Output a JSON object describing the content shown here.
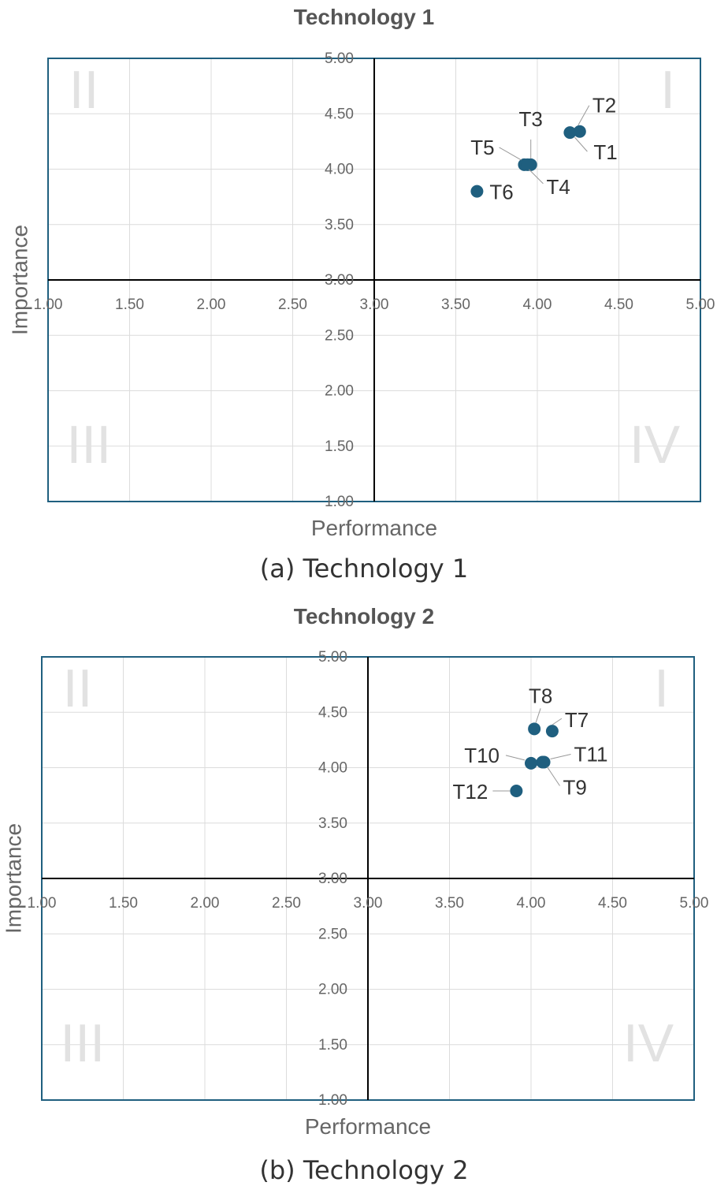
{
  "chart_data": [
    {
      "type": "scatter",
      "title": "Technology 1",
      "caption": "(a)  Technology  1",
      "xlabel": "Performance",
      "ylabel": "Importance",
      "xlim": [
        1.0,
        5.0
      ],
      "ylim": [
        1.0,
        5.0
      ],
      "xticks": [
        "1.00",
        "1.50",
        "2.00",
        "2.50",
        "3.00",
        "3.50",
        "4.00",
        "4.50",
        "5.00"
      ],
      "yticks": [
        "1.00",
        "1.50",
        "2.00",
        "2.50",
        "3.00",
        "3.50",
        "4.00",
        "4.50",
        "5.00"
      ],
      "quadrant_split": {
        "x": 3.0,
        "y": 3.0
      },
      "quadrant_labels": {
        "q1": "I",
        "q2": "II",
        "q3": "III",
        "q4": "IV"
      },
      "grid": true,
      "marker_color": "#1f5f7f",
      "frame_color": "#1f5f7f",
      "points": [
        {
          "label": "T1",
          "x": 4.2,
          "y": 4.33
        },
        {
          "label": "T2",
          "x": 4.26,
          "y": 4.34
        },
        {
          "label": "T3",
          "x": 3.96,
          "y": 4.04
        },
        {
          "label": "T4",
          "x": 3.92,
          "y": 4.04
        },
        {
          "label": "T5",
          "x": 3.94,
          "y": 4.04
        },
        {
          "label": "T6",
          "x": 3.63,
          "y": 3.8
        }
      ]
    },
    {
      "type": "scatter",
      "title": "Technology 2",
      "caption": "(b)  Technology  2",
      "xlabel": "Performance",
      "ylabel": "Importance",
      "xlim": [
        1.0,
        5.0
      ],
      "ylim": [
        1.0,
        5.0
      ],
      "xticks": [
        "1.00",
        "1.50",
        "2.00",
        "2.50",
        "3.00",
        "3.50",
        "4.00",
        "4.50",
        "5.00"
      ],
      "yticks": [
        "1.00",
        "1.50",
        "2.00",
        "2.50",
        "3.00",
        "3.50",
        "4.00",
        "4.50",
        "5.00"
      ],
      "quadrant_split": {
        "x": 3.0,
        "y": 3.0
      },
      "quadrant_labels": {
        "q1": "I",
        "q2": "II",
        "q3": "III",
        "q4": "IV"
      },
      "grid": true,
      "marker_color": "#1f5f7f",
      "frame_color": "#1f5f7f",
      "points": [
        {
          "label": "T7",
          "x": 4.13,
          "y": 4.33
        },
        {
          "label": "T8",
          "x": 4.02,
          "y": 4.35
        },
        {
          "label": "T9",
          "x": 4.07,
          "y": 4.05
        },
        {
          "label": "T10",
          "x": 4.0,
          "y": 4.04
        },
        {
          "label": "T11",
          "x": 4.08,
          "y": 4.05
        },
        {
          "label": "T12",
          "x": 3.91,
          "y": 3.79
        }
      ]
    }
  ]
}
